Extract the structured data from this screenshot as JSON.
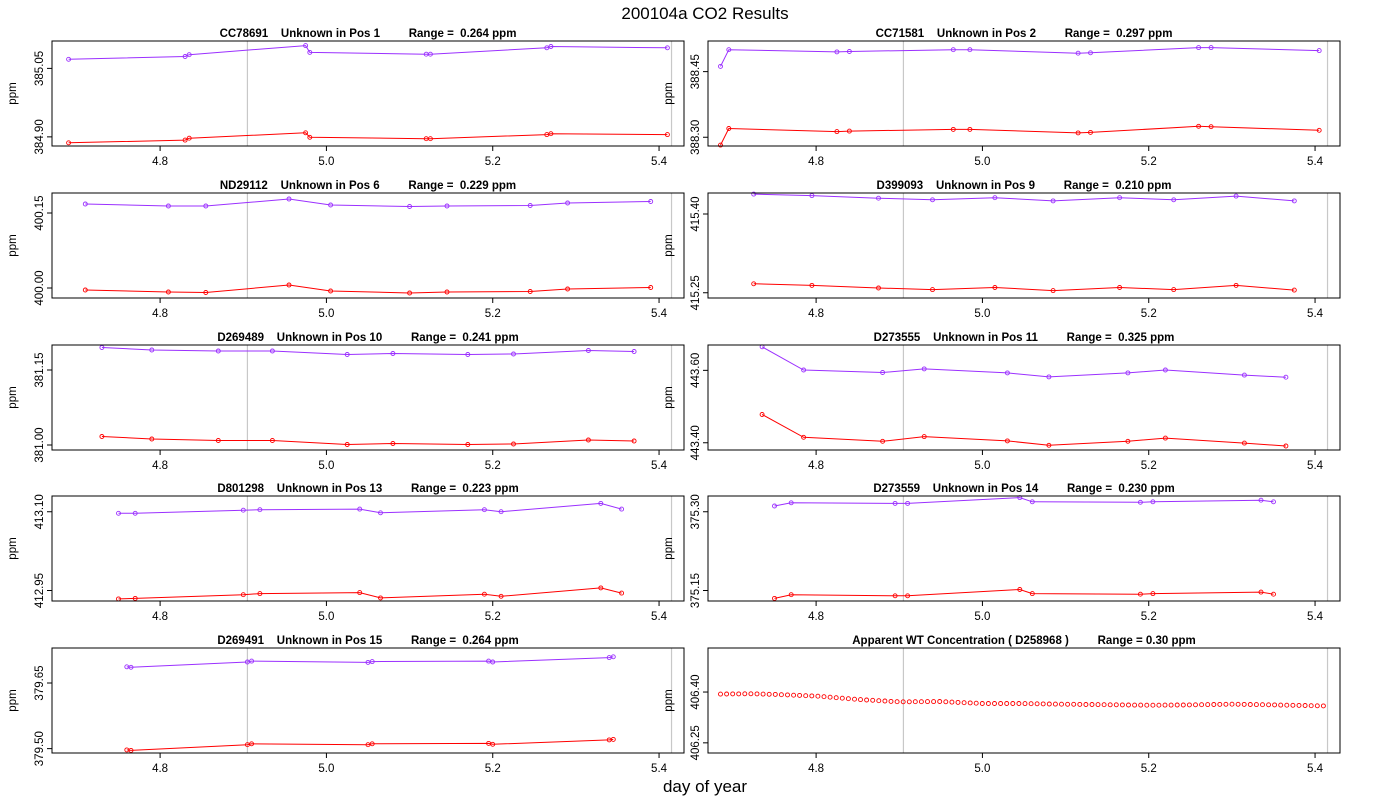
{
  "figure": {
    "title": "200104a  CO2 Results",
    "xlabel": "day of year"
  },
  "colors": {
    "series_upper": "#9b30ff",
    "series_lower": "#ff0000",
    "vline": "#c8c8c8",
    "axis": "#000000"
  },
  "chart_data": [
    {
      "type": "line",
      "title": "CC78691    Unknown in Pos 1         Range =  0.264 ppm",
      "ylabel": "ppm",
      "xlim": [
        4.67,
        5.43
      ],
      "ylim": [
        384.88,
        385.11
      ],
      "xticks": [
        4.8,
        5.0,
        5.2,
        5.4
      ],
      "xtick_labels": [
        "4.8",
        "5.0",
        "5.2",
        "5.4"
      ],
      "yticks": [
        384.9,
        385.05
      ],
      "ytick_labels": [
        "384.90",
        "385.05"
      ],
      "vlines": [
        4.905,
        5.415
      ],
      "series": [
        {
          "name": "upper",
          "color": "#9b30ff",
          "x": [
            4.69,
            4.83,
            4.835,
            4.975,
            4.98,
            5.12,
            5.125,
            5.265,
            5.27,
            5.41
          ],
          "y": [
            385.07,
            385.076,
            385.08,
            385.1,
            385.085,
            385.081,
            385.081,
            385.095,
            385.098,
            385.095
          ]
        },
        {
          "name": "lower",
          "color": "#ff0000",
          "x": [
            4.69,
            4.83,
            4.835,
            4.975,
            4.98,
            5.12,
            5.125,
            5.265,
            5.27,
            5.41
          ],
          "y": [
            384.887,
            384.893,
            384.897,
            384.909,
            384.899,
            384.896,
            384.896,
            384.905,
            384.907,
            384.905
          ]
        }
      ]
    },
    {
      "type": "line",
      "title": "CC71581    Unknown in Pos 2         Range =  0.297 ppm",
      "ylabel": "ppm",
      "xlim": [
        4.67,
        5.43
      ],
      "ylim": [
        388.28,
        388.52
      ],
      "xticks": [
        4.8,
        5.0,
        5.2,
        5.4
      ],
      "xtick_labels": [
        "4.8",
        "5.0",
        "5.2",
        "5.4"
      ],
      "yticks": [
        388.3,
        388.45
      ],
      "ytick_labels": [
        "388.30",
        "388.45"
      ],
      "vlines": [
        4.905,
        5.415
      ],
      "series": [
        {
          "name": "upper",
          "color": "#9b30ff",
          "x": [
            4.685,
            4.695,
            4.825,
            4.84,
            4.965,
            4.985,
            5.115,
            5.13,
            5.26,
            5.275,
            5.405
          ],
          "y": [
            388.462,
            388.5,
            388.495,
            388.496,
            388.5,
            388.5,
            388.492,
            388.493,
            388.505,
            388.505,
            388.498
          ]
        },
        {
          "name": "lower",
          "color": "#ff0000",
          "x": [
            4.685,
            4.695,
            4.825,
            4.84,
            4.965,
            4.985,
            5.115,
            5.13,
            5.26,
            5.275,
            5.405
          ],
          "y": [
            388.282,
            388.32,
            388.313,
            388.314,
            388.318,
            388.318,
            388.31,
            388.311,
            388.325,
            388.324,
            388.316
          ]
        }
      ]
    },
    {
      "type": "line",
      "title": "ND29112    Unknown in Pos 6         Range =  0.229 ppm",
      "ylabel": "ppm",
      "xlim": [
        4.67,
        5.43
      ],
      "ylim": [
        399.98,
        400.19
      ],
      "xticks": [
        4.8,
        5.0,
        5.2,
        5.4
      ],
      "xtick_labels": [
        "4.8",
        "5.0",
        "5.2",
        "5.4"
      ],
      "yticks": [
        400.0,
        400.15
      ],
      "ytick_labels": [
        "400.00",
        "400.15"
      ],
      "vlines": [
        4.905,
        5.415
      ],
      "series": [
        {
          "name": "upper",
          "color": "#9b30ff",
          "x": [
            4.71,
            4.81,
            4.855,
            4.955,
            5.005,
            5.1,
            5.145,
            5.245,
            5.29,
            5.39
          ],
          "y": [
            400.168,
            400.164,
            400.164,
            400.178,
            400.166,
            400.163,
            400.164,
            400.165,
            400.17,
            400.173
          ]
        },
        {
          "name": "lower",
          "color": "#ff0000",
          "x": [
            4.71,
            4.81,
            4.855,
            4.955,
            5.005,
            5.1,
            5.145,
            5.245,
            5.29,
            5.39
          ],
          "y": [
            399.996,
            399.992,
            399.991,
            400.006,
            399.994,
            399.99,
            399.992,
            399.993,
            399.998,
            400.001
          ]
        }
      ]
    },
    {
      "type": "line",
      "title": "D399093    Unknown in Pos 9         Range =  0.210 ppm",
      "ylabel": "ppm",
      "xlim": [
        4.67,
        5.43
      ],
      "ylim": [
        415.24,
        415.44
      ],
      "xticks": [
        4.8,
        5.0,
        5.2,
        5.4
      ],
      "xtick_labels": [
        "4.8",
        "5.0",
        "5.2",
        "5.4"
      ],
      "yticks": [
        415.25,
        415.4
      ],
      "ytick_labels": [
        "415.25",
        "415.40"
      ],
      "vlines": [
        4.905,
        5.415
      ],
      "series": [
        {
          "name": "upper",
          "color": "#9b30ff",
          "x": [
            4.725,
            4.795,
            4.875,
            4.94,
            5.015,
            5.085,
            5.165,
            5.23,
            5.305,
            5.375
          ],
          "y": [
            415.438,
            415.435,
            415.43,
            415.427,
            415.431,
            415.425,
            415.431,
            415.427,
            415.434,
            415.425
          ]
        },
        {
          "name": "lower",
          "color": "#ff0000",
          "x": [
            4.725,
            4.795,
            4.875,
            4.94,
            5.015,
            5.085,
            5.165,
            5.23,
            5.305,
            5.375
          ],
          "y": [
            415.267,
            415.264,
            415.259,
            415.256,
            415.26,
            415.254,
            415.26,
            415.256,
            415.264,
            415.255
          ]
        }
      ]
    },
    {
      "type": "line",
      "title": "D269489    Unknown in Pos 10         Range =  0.241 ppm",
      "ylabel": "ppm",
      "xlim": [
        4.67,
        5.43
      ],
      "ylim": [
        380.99,
        381.2
      ],
      "xticks": [
        4.8,
        5.0,
        5.2,
        5.4
      ],
      "xtick_labels": [
        "4.8",
        "5.0",
        "5.2",
        "5.4"
      ],
      "yticks": [
        381.0,
        381.15
      ],
      "ytick_labels": [
        "381.00",
        "381.15"
      ],
      "vlines": [
        4.905,
        5.415
      ],
      "series": [
        {
          "name": "upper",
          "color": "#9b30ff",
          "x": [
            4.73,
            4.79,
            4.87,
            4.935,
            5.025,
            5.08,
            5.17,
            5.225,
            5.315,
            5.37
          ],
          "y": [
            381.195,
            381.19,
            381.188,
            381.188,
            381.181,
            381.183,
            381.181,
            381.182,
            381.189,
            381.187
          ]
        },
        {
          "name": "lower",
          "color": "#ff0000",
          "x": [
            4.73,
            4.79,
            4.87,
            4.935,
            5.025,
            5.08,
            5.17,
            5.225,
            5.315,
            5.37
          ],
          "y": [
            381.017,
            381.012,
            381.009,
            381.009,
            381.001,
            381.003,
            381.001,
            381.002,
            381.01,
            381.008
          ]
        }
      ]
    },
    {
      "type": "line",
      "title": "D273555    Unknown in Pos 11         Range =  0.325 ppm",
      "ylabel": "ppm",
      "xlim": [
        4.67,
        5.43
      ],
      "ylim": [
        443.38,
        443.67
      ],
      "xticks": [
        4.8,
        5.0,
        5.2,
        5.4
      ],
      "xtick_labels": [
        "4.8",
        "5.0",
        "5.2",
        "5.4"
      ],
      "yticks": [
        443.4,
        443.6
      ],
      "ytick_labels": [
        "443.40",
        "443.60"
      ],
      "vlines": [
        4.905,
        5.415
      ],
      "series": [
        {
          "name": "upper",
          "color": "#9b30ff",
          "x": [
            4.735,
            4.785,
            4.88,
            4.93,
            5.03,
            5.08,
            5.175,
            5.22,
            5.315,
            5.365
          ],
          "y": [
            443.665,
            443.601,
            443.594,
            443.604,
            443.593,
            443.582,
            443.593,
            443.601,
            443.587,
            443.581
          ]
        },
        {
          "name": "lower",
          "color": "#ff0000",
          "x": [
            4.735,
            4.785,
            4.88,
            4.93,
            5.03,
            5.08,
            5.175,
            5.22,
            5.315,
            5.365
          ],
          "y": [
            443.478,
            443.415,
            443.404,
            443.417,
            443.405,
            443.393,
            443.404,
            443.413,
            443.399,
            443.391
          ]
        }
      ]
    },
    {
      "type": "line",
      "title": "D801298    Unknown in Pos 13         Range =  0.223 ppm",
      "ylabel": "ppm",
      "xlim": [
        4.67,
        5.43
      ],
      "ylim": [
        412.93,
        413.13
      ],
      "xticks": [
        4.8,
        5.0,
        5.2,
        5.4
      ],
      "xtick_labels": [
        "4.8",
        "5.0",
        "5.2",
        "5.4"
      ],
      "yticks": [
        412.95,
        413.1
      ],
      "ytick_labels": [
        "412.95",
        "413.10"
      ],
      "vlines": [
        4.905,
        5.415
      ],
      "series": [
        {
          "name": "upper",
          "color": "#9b30ff",
          "x": [
            4.75,
            4.77,
            4.9,
            4.92,
            5.04,
            5.065,
            5.19,
            5.21,
            5.33,
            5.355
          ],
          "y": [
            413.097,
            413.097,
            413.103,
            413.104,
            413.105,
            413.098,
            413.104,
            413.1,
            413.116,
            413.105
          ]
        },
        {
          "name": "lower",
          "color": "#ff0000",
          "x": [
            4.75,
            4.77,
            4.9,
            4.92,
            5.04,
            5.065,
            5.19,
            5.21,
            5.33,
            5.355
          ],
          "y": [
            412.934,
            412.935,
            412.942,
            412.944,
            412.946,
            412.936,
            412.943,
            412.939,
            412.955,
            412.945
          ]
        }
      ]
    },
    {
      "type": "line",
      "title": "D273559    Unknown in Pos 14         Range =  0.230 ppm",
      "ylabel": "ppm",
      "xlim": [
        4.67,
        5.43
      ],
      "ylim": [
        375.13,
        375.33
      ],
      "xticks": [
        4.8,
        5.0,
        5.2,
        5.4
      ],
      "xtick_labels": [
        "4.8",
        "5.0",
        "5.2",
        "5.4"
      ],
      "yticks": [
        375.15,
        375.3
      ],
      "ytick_labels": [
        "375.15",
        "375.30"
      ],
      "vlines": [
        4.905,
        5.415
      ],
      "series": [
        {
          "name": "upper",
          "color": "#9b30ff",
          "x": [
            4.75,
            4.77,
            4.895,
            4.91,
            5.045,
            5.06,
            5.19,
            5.205,
            5.335,
            5.35
          ],
          "y": [
            375.311,
            375.317,
            375.316,
            375.316,
            375.327,
            375.319,
            375.318,
            375.319,
            375.322,
            375.319
          ]
        },
        {
          "name": "lower",
          "color": "#ff0000",
          "x": [
            4.75,
            4.77,
            4.895,
            4.91,
            5.045,
            5.06,
            5.19,
            5.205,
            5.335,
            5.35
          ],
          "y": [
            375.135,
            375.142,
            375.14,
            375.14,
            375.152,
            375.144,
            375.143,
            375.144,
            375.147,
            375.143
          ]
        }
      ]
    },
    {
      "type": "line",
      "title": "D269491    Unknown in Pos 15         Range =  0.264 ppm",
      "ylabel": "ppm",
      "xlim": [
        4.67,
        5.43
      ],
      "ylim": [
        379.49,
        379.73
      ],
      "xticks": [
        4.8,
        5.0,
        5.2,
        5.4
      ],
      "xtick_labels": [
        "4.8",
        "5.0",
        "5.2",
        "5.4"
      ],
      "yticks": [
        379.5,
        379.65
      ],
      "ytick_labels": [
        "379.50",
        "379.65"
      ],
      "vlines": [
        4.905,
        5.415
      ],
      "series": [
        {
          "name": "upper",
          "color": "#9b30ff",
          "x": [
            4.76,
            4.765,
            4.905,
            4.91,
            5.05,
            5.055,
            5.195,
            5.2,
            5.34,
            5.345
          ],
          "y": [
            379.687,
            379.686,
            379.698,
            379.7,
            379.697,
            379.699,
            379.7,
            379.698,
            379.708,
            379.71
          ]
        },
        {
          "name": "lower",
          "color": "#ff0000",
          "x": [
            4.76,
            4.765,
            4.905,
            4.91,
            5.05,
            5.055,
            5.195,
            5.2,
            5.34,
            5.345
          ],
          "y": [
            379.497,
            379.496,
            379.509,
            379.511,
            379.509,
            379.511,
            379.512,
            379.51,
            379.52,
            379.521
          ]
        }
      ]
    },
    {
      "type": "scatter",
      "title": "Apparent WT Concentration ( D258968 )         Range = 0.30 ppm",
      "ylabel": "ppm",
      "xlim": [
        4.67,
        5.43
      ],
      "ylim": [
        406.22,
        406.53
      ],
      "xticks": [
        4.8,
        5.0,
        5.2,
        5.4
      ],
      "xtick_labels": [
        "4.8",
        "5.0",
        "5.2",
        "5.4"
      ],
      "yticks": [
        406.25,
        406.4
      ],
      "ytick_labels": [
        "406.25",
        "406.40"
      ],
      "vlines": [
        4.905,
        5.415
      ],
      "series": [
        {
          "name": "WT",
          "color": "#ff0000",
          "x_start": 4.685,
          "x_end": 5.41,
          "n": 100,
          "profile": [
            [
              4.685,
              406.394
            ],
            [
              4.72,
              406.395
            ],
            [
              4.75,
              406.393
            ],
            [
              4.8,
              406.388
            ],
            [
              4.85,
              406.378
            ],
            [
              4.9,
              406.371
            ],
            [
              4.95,
              406.372
            ],
            [
              5.0,
              406.366
            ],
            [
              5.05,
              406.366
            ],
            [
              5.1,
              406.364
            ],
            [
              5.2,
              406.361
            ],
            [
              5.25,
              406.362
            ],
            [
              5.3,
              406.364
            ],
            [
              5.35,
              406.362
            ],
            [
              5.41,
              406.359
            ]
          ]
        }
      ]
    }
  ]
}
